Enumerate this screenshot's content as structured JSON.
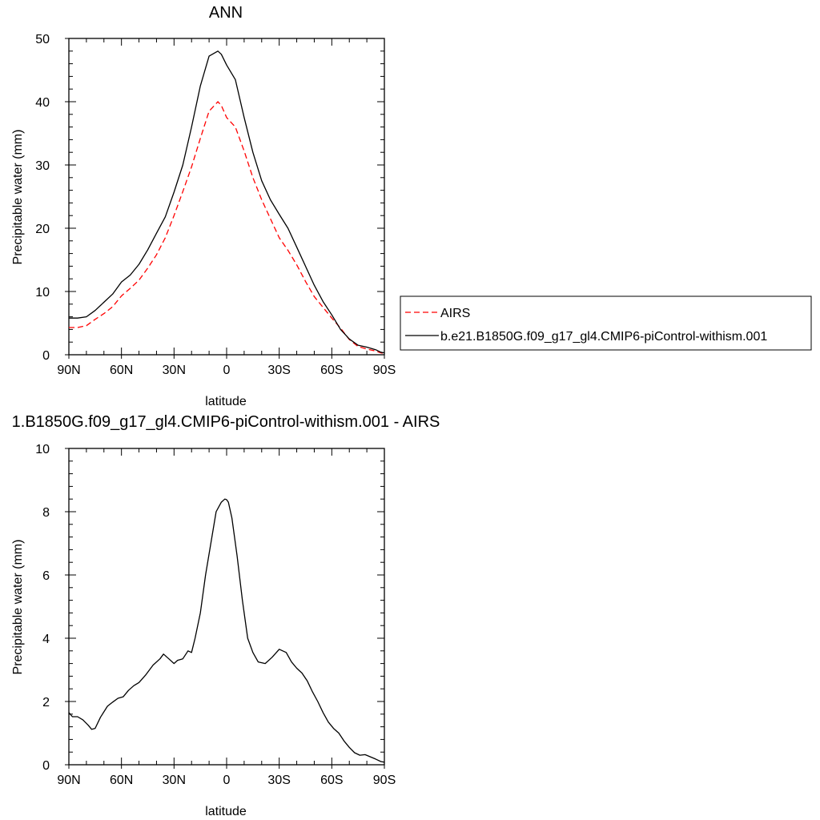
{
  "chart_data": [
    {
      "type": "line",
      "title": "ANN",
      "xlabel": "latitude",
      "ylabel": "Precipitable water (mm)",
      "xlim": [
        90,
        -90
      ],
      "ylim": [
        0,
        50
      ],
      "xticks": [
        90,
        60,
        30,
        0,
        -30,
        -60,
        -90
      ],
      "xtick_labels": [
        "90N",
        "60N",
        "30N",
        "0",
        "30S",
        "60S",
        "90S"
      ],
      "yticks": [
        0,
        10,
        20,
        30,
        40,
        50
      ],
      "ytick_labels": [
        "0",
        "10",
        "20",
        "30",
        "40",
        "50"
      ],
      "legend_position": "right",
      "colors": {
        "AIRS": "#ff0000",
        "model": "#000000"
      },
      "series": [
        {
          "name": "AIRS",
          "style": "dashed",
          "x": [
            90,
            85,
            80,
            75,
            70,
            65,
            60,
            55,
            50,
            45,
            40,
            35,
            30,
            25,
            20,
            15,
            10,
            5,
            3,
            0,
            -5,
            -10,
            -15,
            -20,
            -25,
            -30,
            -35,
            -40,
            -45,
            -50,
            -55,
            -60,
            -65,
            -70,
            -75,
            -80,
            -85,
            -88,
            -90
          ],
          "values": [
            4.3,
            4.3,
            4.6,
            5.6,
            6.5,
            7.6,
            9.3,
            10.5,
            11.8,
            13.7,
            15.8,
            18.5,
            22.0,
            25.8,
            29.7,
            34.2,
            38.5,
            40.0,
            39.4,
            37.5,
            36.0,
            32.2,
            28.0,
            24.5,
            21.5,
            18.5,
            16.5,
            14.2,
            11.6,
            9.2,
            7.5,
            5.8,
            4.2,
            2.4,
            1.3,
            0.9,
            0.6,
            0.3,
            0.2
          ]
        },
        {
          "name": "b.e21.B1850G.f09_g17_gl4.CMIP6-piControl-withism.001",
          "style": "solid",
          "x": [
            90,
            85,
            80,
            75,
            70,
            65,
            60,
            55,
            50,
            45,
            40,
            35,
            30,
            25,
            20,
            15,
            10,
            5,
            3,
            0,
            -5,
            -10,
            -15,
            -20,
            -25,
            -30,
            -35,
            -40,
            -45,
            -50,
            -55,
            -60,
            -65,
            -70,
            -75,
            -80,
            -85,
            -88,
            -90
          ],
          "values": [
            5.8,
            5.8,
            6.0,
            7.0,
            8.3,
            9.6,
            11.5,
            12.6,
            14.3,
            16.6,
            19.2,
            21.8,
            25.7,
            30.0,
            36.0,
            42.5,
            47.2,
            48.0,
            47.5,
            45.8,
            43.5,
            37.5,
            32.0,
            27.5,
            24.5,
            22.2,
            20.0,
            17.0,
            14.0,
            11.0,
            8.4,
            6.3,
            4.0,
            2.5,
            1.5,
            1.2,
            0.8,
            0.4,
            0.3
          ]
        }
      ]
    },
    {
      "type": "line",
      "title": "1.B1850G.f09_g17_gl4.CMIP6-piControl-withism.001 - AIRS",
      "xlabel": "latitude",
      "ylabel": "Precipitable water (mm)",
      "xlim": [
        90,
        -90
      ],
      "ylim": [
        0,
        10
      ],
      "xticks": [
        90,
        60,
        30,
        0,
        -30,
        -60,
        -90
      ],
      "xtick_labels": [
        "90N",
        "60N",
        "30N",
        "0",
        "30S",
        "60S",
        "90S"
      ],
      "yticks": [
        0,
        2,
        4,
        6,
        8,
        10
      ],
      "ytick_labels": [
        "0",
        "2",
        "4",
        "6",
        "8",
        "10"
      ],
      "colors": {
        "line": "#000000"
      },
      "series": [
        {
          "style": "solid",
          "x": [
            90,
            88,
            85,
            82,
            79,
            77,
            75,
            72,
            68,
            65,
            62,
            59,
            56,
            53,
            50,
            46,
            42,
            38,
            36,
            33,
            30,
            28,
            25,
            22,
            20,
            18,
            15,
            12,
            9,
            6,
            3,
            1,
            0,
            -1,
            -3,
            -6,
            -9,
            -12,
            -15,
            -18,
            -22,
            -26,
            -30,
            -34,
            -37,
            -40,
            -43,
            -46,
            -49,
            -52,
            -55,
            -58,
            -61,
            -64,
            -67,
            -70,
            -73,
            -76,
            -79,
            -82,
            -85,
            -88,
            -90
          ],
          "values": [
            1.65,
            1.52,
            1.52,
            1.42,
            1.25,
            1.12,
            1.15,
            1.5,
            1.85,
            1.98,
            2.1,
            2.15,
            2.35,
            2.5,
            2.6,
            2.85,
            3.15,
            3.35,
            3.5,
            3.35,
            3.2,
            3.3,
            3.35,
            3.6,
            3.55,
            4.0,
            4.8,
            6.0,
            7.0,
            8.0,
            8.3,
            8.4,
            8.38,
            8.3,
            7.8,
            6.6,
            5.2,
            4.0,
            3.55,
            3.25,
            3.2,
            3.4,
            3.65,
            3.55,
            3.25,
            3.05,
            2.9,
            2.65,
            2.3,
            2.0,
            1.65,
            1.35,
            1.15,
            1.0,
            0.75,
            0.55,
            0.38,
            0.3,
            0.32,
            0.25,
            0.18,
            0.1,
            0.08
          ]
        }
      ]
    }
  ]
}
